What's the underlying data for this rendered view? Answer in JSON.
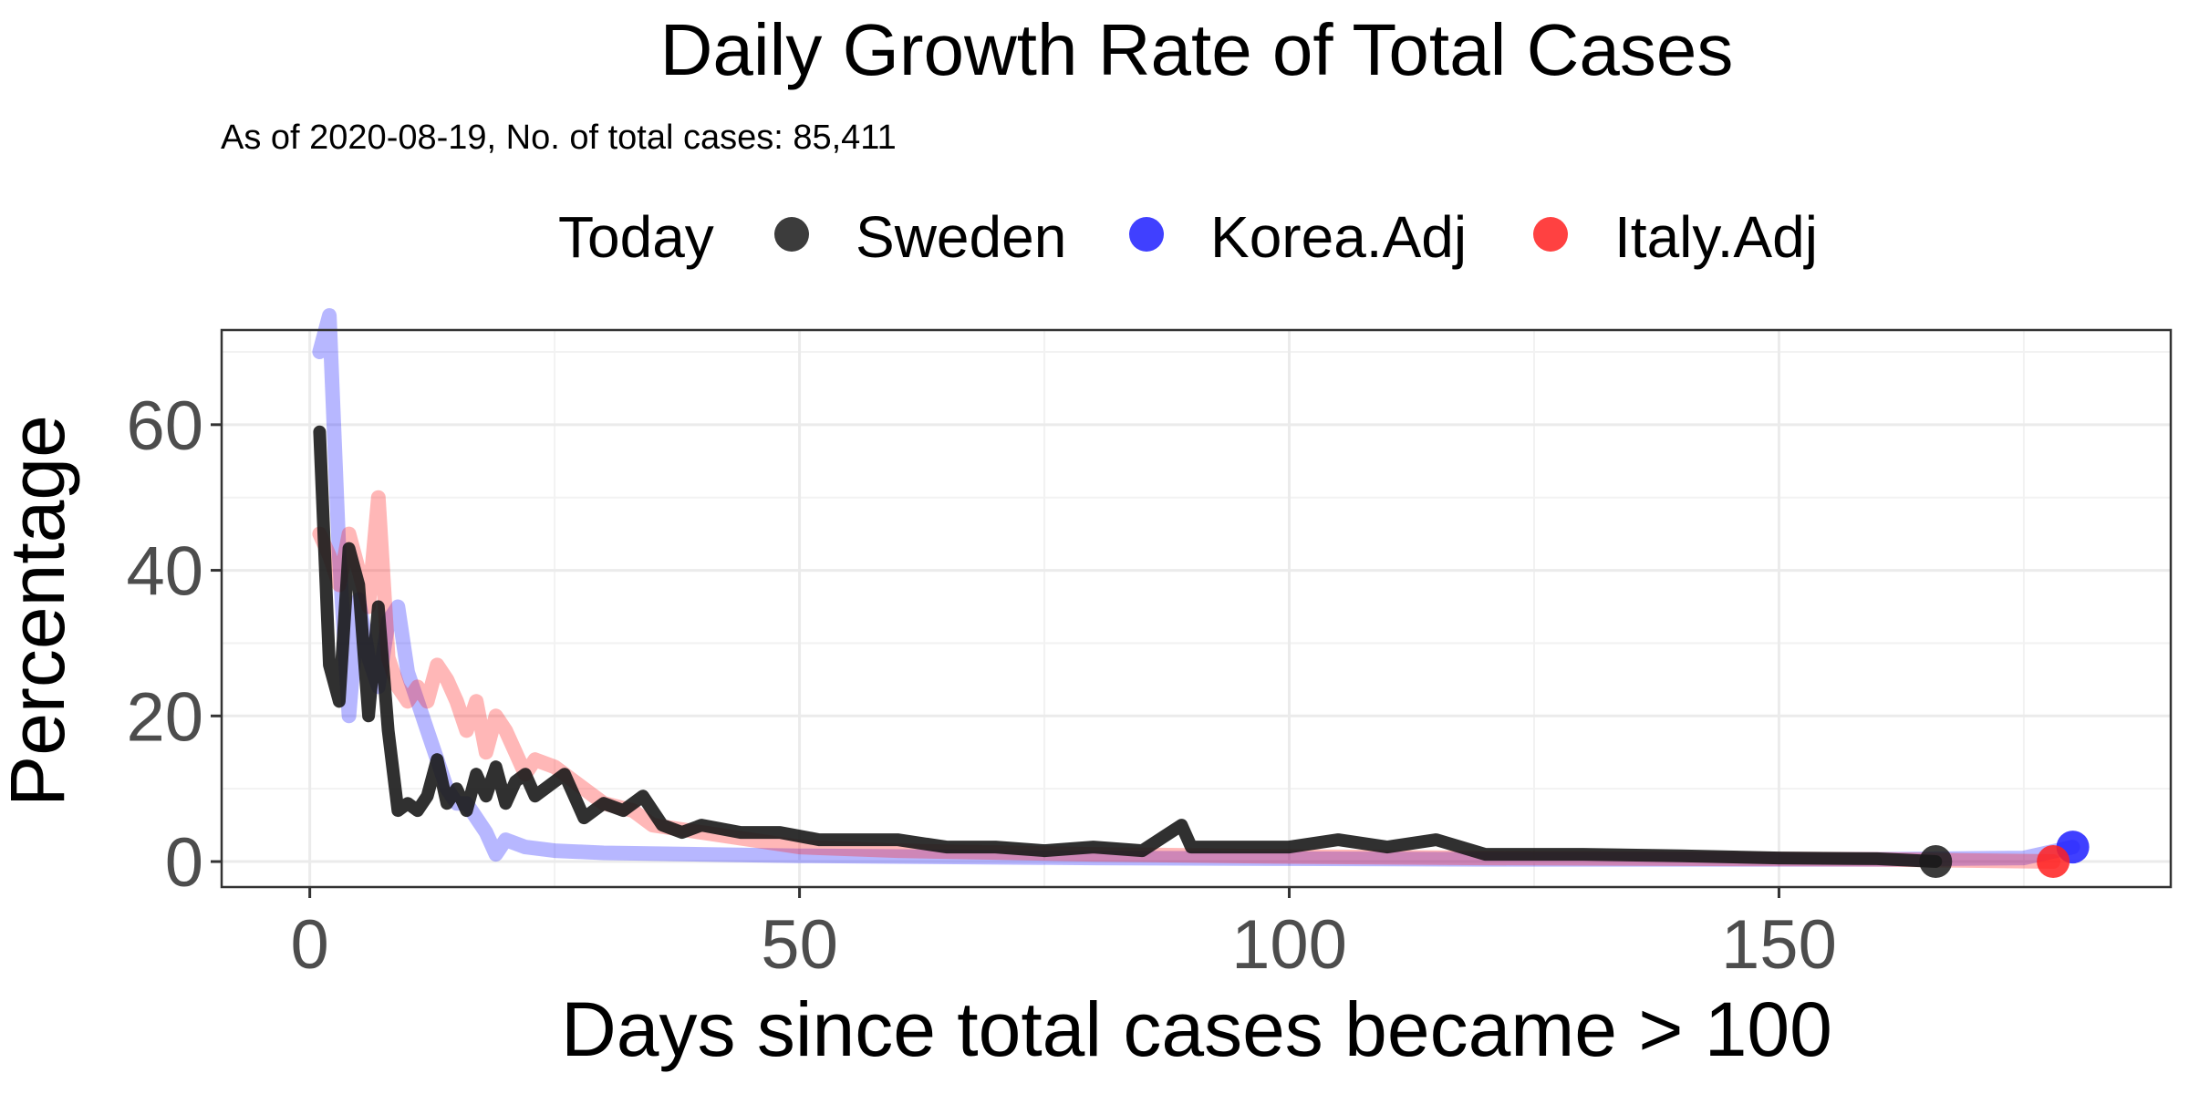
{
  "chart_data": {
    "type": "line",
    "title": "Daily Growth Rate of Total Cases",
    "subtitle": "As of 2020-08-19, No. of total cases: 85,411",
    "xlabel": "Days since total cases became > 100",
    "ylabel": "Percentage",
    "xlim": [
      -9,
      190
    ],
    "ylim": [
      -3.5,
      73
    ],
    "x_ticks": [
      0,
      50,
      100,
      150
    ],
    "y_ticks": [
      0,
      20,
      40,
      60
    ],
    "grid": true,
    "legend": {
      "title": "Today",
      "position": "top"
    },
    "series": [
      {
        "name": "Korea.Adj",
        "color": "#1f1fff",
        "x": [
          1,
          2,
          3,
          4,
          5,
          6,
          7,
          8,
          9,
          10,
          11,
          12,
          13,
          14,
          15,
          16,
          17,
          18,
          19,
          20,
          22,
          25,
          30,
          40,
          50,
          60,
          80,
          100,
          120,
          140,
          160,
          175,
          180
        ],
        "y": [
          70,
          75,
          42,
          20,
          36,
          28,
          24,
          33,
          35,
          26,
          22,
          18,
          14,
          10,
          8,
          8,
          6,
          4,
          1,
          3,
          2,
          1.5,
          1.2,
          1,
          0.8,
          0.7,
          0.5,
          0.4,
          0.3,
          0.3,
          0.3,
          0.5,
          2
        ]
      },
      {
        "name": "Italy.Adj",
        "color": "#ff2020",
        "x": [
          1,
          2,
          3,
          4,
          5,
          6,
          7,
          8,
          9,
          10,
          11,
          12,
          13,
          14,
          15,
          16,
          17,
          18,
          19,
          20,
          21,
          22,
          23,
          25,
          28,
          30,
          33,
          35,
          40,
          45,
          50,
          60,
          80,
          100,
          120,
          140,
          160,
          178
        ],
        "y": [
          45,
          42,
          38,
          45,
          40,
          35,
          50,
          28,
          24,
          22,
          24,
          22,
          27,
          25,
          22,
          18,
          22,
          15,
          20,
          18,
          15,
          12,
          14,
          13,
          10,
          8,
          7,
          5,
          4,
          3,
          2,
          1.5,
          1,
          0.7,
          0.5,
          0.4,
          0.3,
          0
        ]
      },
      {
        "name": "Sweden",
        "color": "#1a1a1a",
        "x": [
          1,
          2,
          3,
          4,
          5,
          6,
          7,
          8,
          9,
          10,
          11,
          12,
          13,
          14,
          15,
          16,
          17,
          18,
          19,
          20,
          21,
          22,
          23,
          24,
          26,
          28,
          30,
          32,
          34,
          36,
          38,
          40,
          44,
          48,
          52,
          56,
          60,
          65,
          70,
          75,
          80,
          85,
          89,
          90,
          95,
          100,
          105,
          110,
          115,
          120,
          125,
          130,
          140,
          150,
          160,
          166
        ],
        "y": [
          59,
          27,
          22,
          43,
          38,
          20,
          35,
          18,
          7,
          8,
          7,
          9,
          14,
          8,
          10,
          7,
          12,
          9,
          13,
          8,
          11,
          12,
          9,
          10,
          12,
          6,
          8,
          7,
          9,
          5,
          4,
          5,
          4,
          4,
          3,
          3,
          3,
          2,
          2,
          1.5,
          2,
          1.5,
          5,
          2,
          2,
          2,
          3,
          2,
          3,
          1,
          1,
          1,
          0.8,
          0.5,
          0.4,
          0
        ]
      }
    ]
  }
}
